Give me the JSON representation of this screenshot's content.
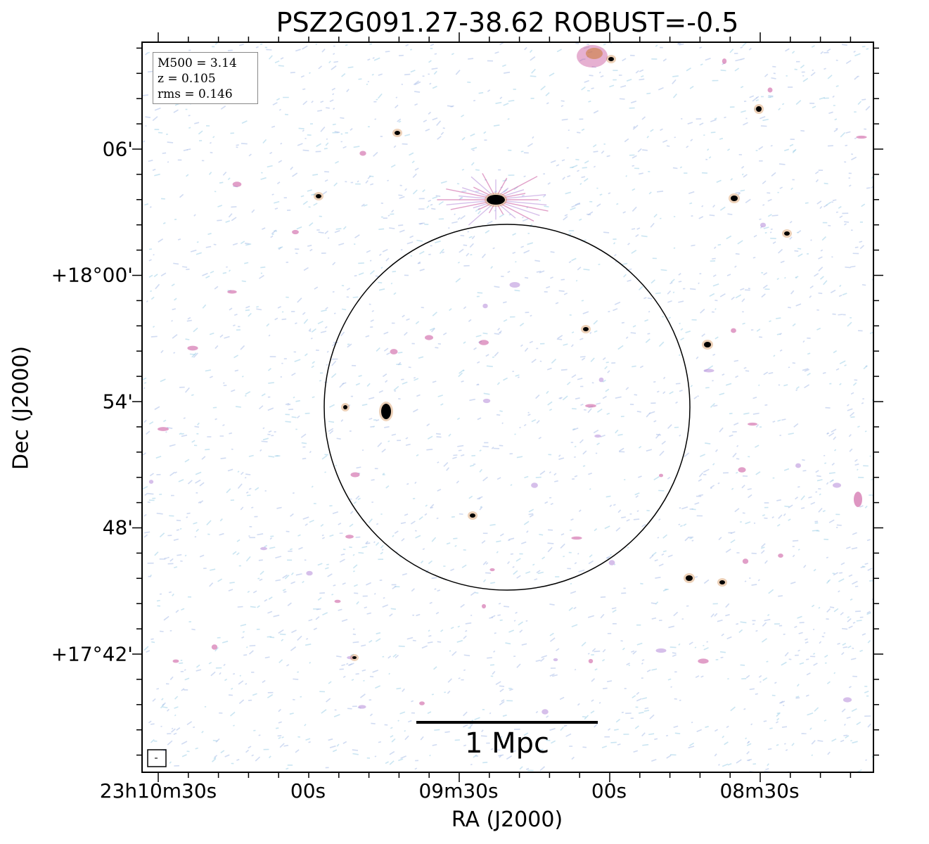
{
  "title": "PSZ2G091.27-38.62 ROBUST=-0.5",
  "axes": {
    "xlabel": "RA (J2000)",
    "ylabel": "Dec (J2000)",
    "xticks": [
      "23h10m30s",
      "00s",
      "09m30s",
      "00s",
      "08m30s"
    ],
    "yticks": [
      "06'",
      "+18°00'",
      "54'",
      "48'",
      "+17°42'"
    ]
  },
  "legend": {
    "m500": "M500 = 3.14",
    "z": "z = 0.105",
    "rms": "rms = 0.146"
  },
  "scale_bar": {
    "label": "1 Mpc"
  },
  "colors": {
    "noise_blue": "#a9bde8",
    "noise_cyan": "#9fd0e8",
    "emission_pink": "#c8509a",
    "emission_purple": "#b48ad8",
    "emission_orange": "#c87830",
    "source_core": "#000000"
  }
}
